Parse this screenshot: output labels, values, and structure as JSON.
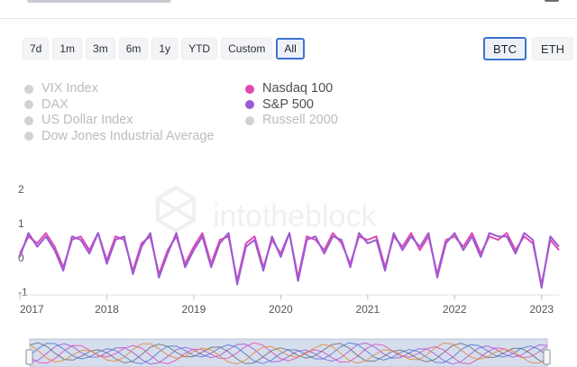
{
  "range_buttons": [
    "7d",
    "1m",
    "3m",
    "6m",
    "1y",
    "YTD",
    "Custom",
    "All"
  ],
  "active_range": "All",
  "asset_buttons": [
    "BTC",
    "ETH"
  ],
  "active_asset": "BTC",
  "legend": {
    "left": [
      {
        "label": "VIX Index",
        "active": false,
        "color": "#cfd2d6"
      },
      {
        "label": "DAX",
        "active": false,
        "color": "#cfd2d6"
      },
      {
        "label": "US Dollar Index",
        "active": false,
        "color": "#cfd2d6"
      },
      {
        "label": "Dow Jones Industrial Average",
        "active": false,
        "color": "#cfd2d6"
      }
    ],
    "right": [
      {
        "label": "Nasdaq 100",
        "active": true,
        "color": "#e04ab0"
      },
      {
        "label": "S&P 500",
        "active": true,
        "color": "#9b5ad6"
      },
      {
        "label": "Russell 2000",
        "active": false,
        "color": "#cfd2d6"
      }
    ]
  },
  "watermark": "intotheblock",
  "colors": {
    "nasdaq": "#e04ab0",
    "sp500": "#9b5ad6",
    "grid": "#eef0f3",
    "active_border": "#3d73d4"
  },
  "chart_data": {
    "type": "line",
    "ylim": [
      -1,
      2
    ],
    "yticks": [
      "2",
      "1",
      "0",
      "-1"
    ],
    "xlim": [
      2017.0,
      2023.2
    ],
    "xticks": [
      "2017",
      "2018",
      "2019",
      "2020",
      "2021",
      "2022",
      "2023"
    ],
    "series": [
      {
        "name": "Nasdaq 100",
        "color": "#e04ab0",
        "x": [
          2017.0,
          2017.1,
          2017.2,
          2017.3,
          2017.4,
          2017.5,
          2017.6,
          2017.7,
          2017.8,
          2017.9,
          2018.0,
          2018.1,
          2018.2,
          2018.3,
          2018.4,
          2018.5,
          2018.6,
          2018.7,
          2018.8,
          2018.9,
          2019.0,
          2019.1,
          2019.2,
          2019.3,
          2019.4,
          2019.5,
          2019.6,
          2019.7,
          2019.8,
          2019.9,
          2020.0,
          2020.1,
          2020.2,
          2020.3,
          2020.4,
          2020.5,
          2020.6,
          2020.7,
          2020.8,
          2020.9,
          2021.0,
          2021.1,
          2021.2,
          2021.3,
          2021.4,
          2021.5,
          2021.6,
          2021.7,
          2021.8,
          2021.9,
          2022.0,
          2022.1,
          2022.2,
          2022.3,
          2022.4,
          2022.5,
          2022.6,
          2022.7,
          2022.8,
          2022.9,
          2023.0,
          2023.1,
          2023.2
        ],
        "values": [
          0.1,
          0.6,
          0.4,
          0.7,
          0.3,
          -0.3,
          0.5,
          0.6,
          0.2,
          0.7,
          -0.1,
          0.6,
          0.5,
          -0.4,
          0.4,
          0.6,
          -0.5,
          0.2,
          0.6,
          -0.2,
          0.3,
          0.7,
          -0.2,
          0.5,
          0.6,
          -0.7,
          0.4,
          0.6,
          -0.3,
          0.5,
          0.1,
          0.7,
          -0.6,
          0.6,
          0.5,
          0.2,
          0.7,
          0.4,
          -0.2,
          0.6,
          0.5,
          0.6,
          -0.3,
          0.6,
          0.3,
          0.7,
          0.2,
          0.6,
          -0.5,
          0.5,
          0.6,
          0.3,
          0.7,
          0.1,
          0.6,
          0.5,
          0.7,
          0.2,
          0.6,
          0.4,
          -0.8,
          0.5,
          0.2
        ]
      },
      {
        "name": "S&P 500",
        "color": "#9b5ad6",
        "x": [
          2017.0,
          2017.1,
          2017.2,
          2017.3,
          2017.4,
          2017.5,
          2017.6,
          2017.7,
          2017.8,
          2017.9,
          2018.0,
          2018.1,
          2018.2,
          2018.3,
          2018.4,
          2018.5,
          2018.6,
          2018.7,
          2018.8,
          2018.9,
          2019.0,
          2019.1,
          2019.2,
          2019.3,
          2019.4,
          2019.5,
          2019.6,
          2019.7,
          2019.8,
          2019.9,
          2020.0,
          2020.1,
          2020.2,
          2020.3,
          2020.4,
          2020.5,
          2020.6,
          2020.7,
          2020.8,
          2020.9,
          2021.0,
          2021.1,
          2021.2,
          2021.3,
          2021.4,
          2021.5,
          2021.6,
          2021.7,
          2021.8,
          2021.9,
          2022.0,
          2022.1,
          2022.2,
          2022.3,
          2022.4,
          2022.5,
          2022.6,
          2022.7,
          2022.8,
          2022.9,
          2023.0,
          2023.1,
          2023.2
        ],
        "values": [
          0.0,
          0.7,
          0.3,
          0.6,
          0.2,
          -0.4,
          0.6,
          0.5,
          0.1,
          0.7,
          -0.2,
          0.5,
          0.6,
          -0.5,
          0.3,
          0.7,
          -0.6,
          0.1,
          0.7,
          -0.3,
          0.2,
          0.6,
          -0.3,
          0.4,
          0.7,
          -0.8,
          0.3,
          0.5,
          -0.4,
          0.6,
          0.0,
          0.7,
          -0.7,
          0.5,
          0.6,
          0.1,
          0.6,
          0.5,
          -0.3,
          0.7,
          0.4,
          0.5,
          -0.4,
          0.7,
          0.2,
          0.6,
          0.3,
          0.7,
          -0.6,
          0.4,
          0.7,
          0.2,
          0.6,
          0.0,
          0.7,
          0.6,
          0.6,
          0.1,
          0.7,
          0.5,
          -0.9,
          0.6,
          0.3
        ]
      }
    ]
  }
}
